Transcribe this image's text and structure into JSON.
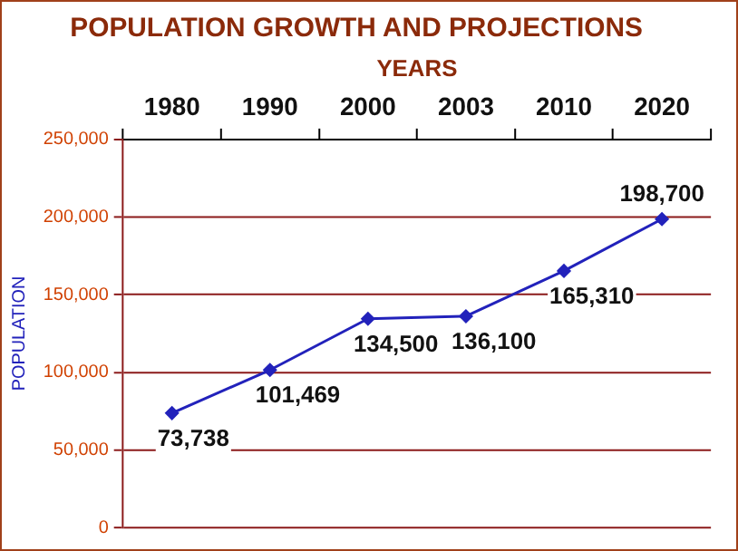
{
  "chart_data": {
    "type": "line",
    "title": "POPULATION GROWTH AND PROJECTIONS",
    "xlabel": "YEARS",
    "ylabel": "POPULATION",
    "categories": [
      "1980",
      "1990",
      "2000",
      "2003",
      "2010",
      "2020"
    ],
    "series": [
      {
        "color": "#2222bb",
        "values": [
          73738,
          101469,
          134500,
          136100,
          165310,
          198700
        ]
      }
    ],
    "value_labels": [
      "73,738",
      "101,469",
      "134,500",
      "136,100",
      "165,310",
      "198,700"
    ],
    "ylim": [
      0,
      250000
    ],
    "yticks": [
      0,
      {
        "value": 50000,
        "label": "50,000"
      },
      {
        "value": 100000,
        "label": "100,000"
      },
      {
        "value": 150000,
        "label": "150,000"
      },
      {
        "value": 200000,
        "label": "200,000"
      },
      {
        "value": 250000,
        "label": "250,000"
      }
    ],
    "grid": "y",
    "legend": false,
    "marker": "diamond",
    "line_style": "solid"
  }
}
